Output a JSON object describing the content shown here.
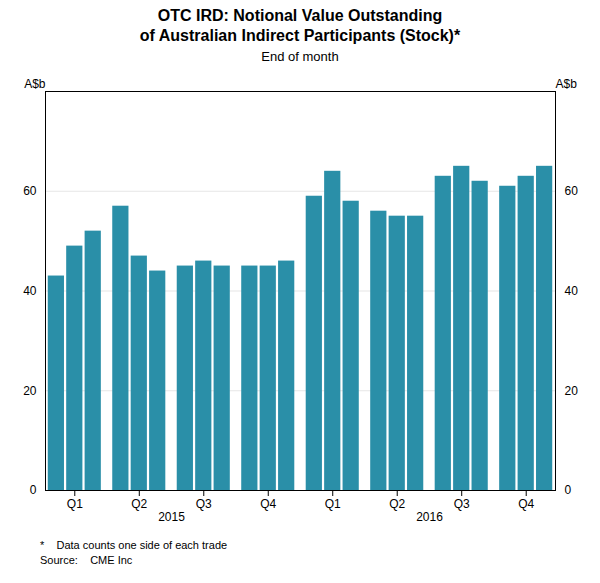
{
  "chart_data": {
    "type": "bar",
    "title": "OTC IRD: Notional Value Outstanding\nof Australian Indirect Participants (Stock)*",
    "subtitle": "End of month",
    "ylabel": "A$b",
    "y2label": "A$b",
    "categories": [
      null,
      "Q1",
      null,
      null,
      "Q2",
      null,
      null,
      "Q3",
      null,
      null,
      "Q4",
      null,
      null,
      "Q1",
      null,
      null,
      "Q2",
      null,
      null,
      "Q3",
      null,
      null,
      "Q4",
      null
    ],
    "values": [
      43,
      49,
      52,
      57,
      47,
      44,
      45,
      46,
      45,
      45,
      45,
      46,
      59,
      64,
      58,
      56,
      55,
      55,
      63,
      65,
      62,
      61,
      63,
      65
    ],
    "color": "#2a8fa8",
    "ylim": [
      0,
      80
    ],
    "yticks": [
      0,
      20,
      40,
      60
    ],
    "y2lim": [
      0,
      80
    ],
    "y2ticks": [
      0,
      20,
      40,
      60
    ],
    "grid": true,
    "annotations": [
      "2015",
      "2016"
    ],
    "footnotes": [
      "*    Data counts one side of each trade",
      "Source:    CME Inc"
    ]
  }
}
